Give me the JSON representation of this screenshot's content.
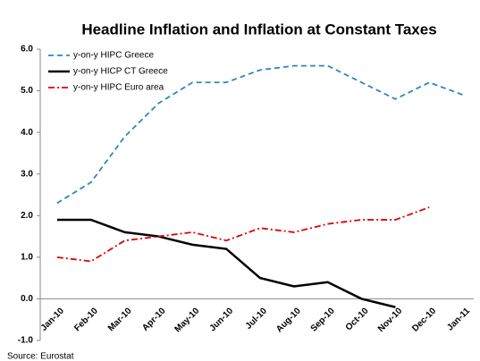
{
  "chart_data": {
    "type": "line",
    "title": "Headline Inflation and Inflation at Constant Taxes",
    "source": "Source: Eurostat",
    "categories": [
      "Jan-10",
      "Feb-10",
      "Mar-10",
      "Apr-10",
      "May-10",
      "Jun-10",
      "Jul-10",
      "Aug-10",
      "Sep-10",
      "Oct-10",
      "Nov-10",
      "Dec-10",
      "Jan-11"
    ],
    "series": [
      {
        "name": "y-on-y HIPC Greece",
        "color": "#2e86c1",
        "dash": "dashed",
        "values": [
          2.3,
          2.8,
          3.9,
          4.7,
          5.2,
          5.2,
          5.5,
          5.6,
          5.6,
          5.2,
          4.8,
          5.2,
          4.9
        ]
      },
      {
        "name": "y-on-y HICP CT Greece",
        "color": "#000000",
        "dash": "solid",
        "values": [
          1.9,
          1.9,
          1.6,
          1.5,
          1.3,
          1.2,
          0.5,
          0.3,
          0.4,
          0.0,
          -0.2,
          null,
          null
        ]
      },
      {
        "name": "y-on-y HIPC Euro area",
        "color": "#e00000",
        "dash": "dashdot",
        "values": [
          1.0,
          0.9,
          1.4,
          1.5,
          1.6,
          1.4,
          1.7,
          1.6,
          1.8,
          1.9,
          1.9,
          2.2,
          null
        ]
      }
    ],
    "ylim": [
      -1,
      6
    ],
    "yticks": [
      {
        "value": -1,
        "label": "-1.0"
      },
      {
        "value": 0,
        "label": "0.0"
      },
      {
        "value": 1,
        "label": "1.0"
      },
      {
        "value": 2,
        "label": "2.0"
      },
      {
        "value": 3,
        "label": "3.0"
      },
      {
        "value": 4,
        "label": "4.0"
      },
      {
        "value": 5,
        "label": "5.0"
      },
      {
        "value": 6,
        "label": "6.0"
      }
    ],
    "grid": false,
    "legend": "upper left"
  }
}
